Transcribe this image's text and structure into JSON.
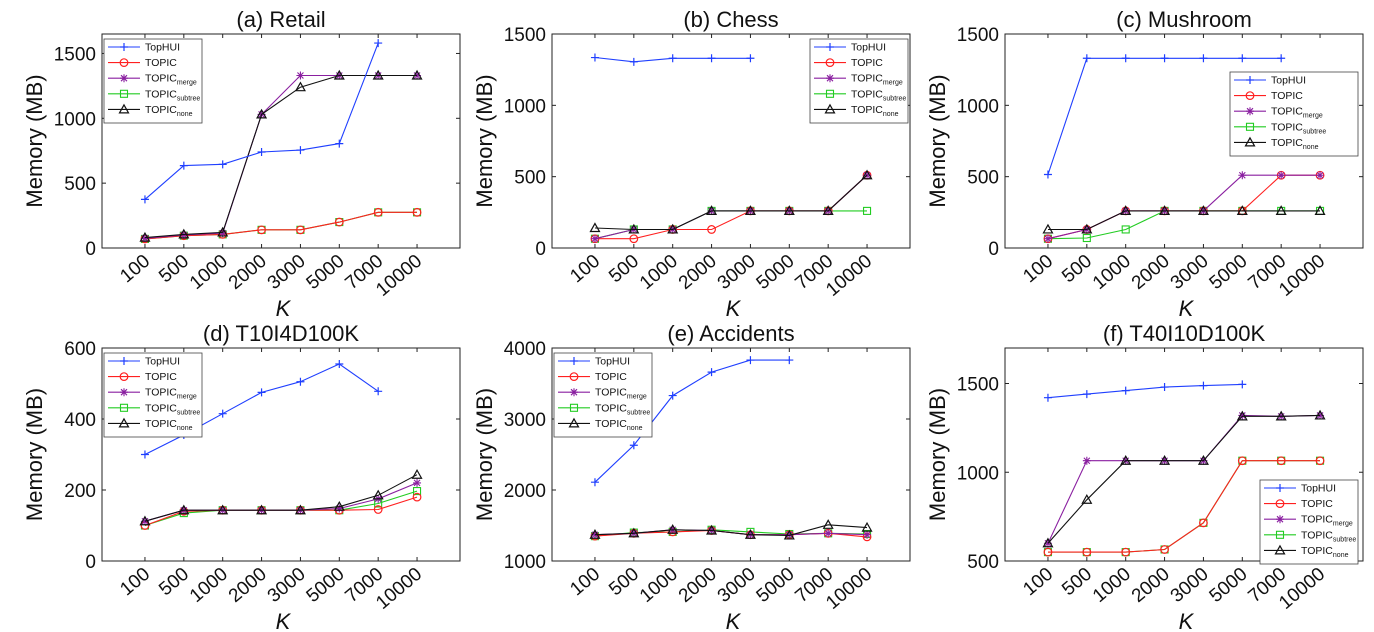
{
  "colors": {
    "TopHUI": "#1f3fff",
    "TOPIC": "#ff2020",
    "TOPIC_merge": "#8a1fa0",
    "TOPIC_subtree": "#22cc22",
    "TOPIC_none": "#111111"
  },
  "legend_entries": [
    {
      "key": "TopHUI",
      "main": "TopHUI",
      "sub": "",
      "marker": "plus"
    },
    {
      "key": "TOPIC",
      "main": "TOPIC",
      "sub": "",
      "marker": "circle"
    },
    {
      "key": "TOPIC_merge",
      "main": "TOPIC",
      "sub": "merge",
      "marker": "star"
    },
    {
      "key": "TOPIC_subtree",
      "main": "TOPIC",
      "sub": "subtree",
      "marker": "square"
    },
    {
      "key": "TOPIC_none",
      "main": "TOPIC",
      "sub": "none",
      "marker": "triangle"
    }
  ],
  "chart_data": [
    {
      "type": "line",
      "title": "(a) Retail",
      "xlabel": "K",
      "ylabel": "Memory (MB)",
      "categories": [
        "100",
        "500",
        "1000",
        "2000",
        "3000",
        "5000",
        "7000",
        "10000"
      ],
      "ylim": [
        0,
        1650
      ],
      "yticks": [
        0,
        500,
        1000,
        1500
      ],
      "legend_position": "top-left",
      "series": [
        {
          "name": "TopHUI",
          "values": [
            375,
            635,
            645,
            740,
            755,
            805,
            1580,
            null
          ]
        },
        {
          "name": "TOPIC",
          "values": [
            70,
            95,
            105,
            140,
            140,
            200,
            275,
            275
          ]
        },
        {
          "name": "TOPIC_merge",
          "values": [
            75,
            100,
            115,
            1030,
            1330,
            1330,
            1330,
            1330
          ]
        },
        {
          "name": "TOPIC_subtree",
          "values": [
            70,
            95,
            105,
            140,
            140,
            200,
            275,
            275
          ]
        },
        {
          "name": "TOPIC_none",
          "values": [
            80,
            105,
            120,
            1030,
            1240,
            1330,
            1330,
            1330
          ]
        }
      ]
    },
    {
      "type": "line",
      "title": "(b) Chess",
      "xlabel": "K",
      "ylabel": "Memory (MB)",
      "categories": [
        "100",
        "500",
        "1000",
        "2000",
        "3000",
        "5000",
        "7000",
        "10000"
      ],
      "ylim": [
        0,
        1500
      ],
      "yticks": [
        0,
        500,
        1000,
        1500
      ],
      "legend_position": "top-right",
      "series": [
        {
          "name": "TopHUI",
          "values": [
            1335,
            1305,
            1330,
            1330,
            1330,
            null,
            null,
            null
          ]
        },
        {
          "name": "TOPIC",
          "values": [
            65,
            65,
            130,
            130,
            260,
            260,
            260,
            510
          ]
        },
        {
          "name": "TOPIC_merge",
          "values": [
            65,
            130,
            130,
            260,
            260,
            260,
            260,
            510
          ]
        },
        {
          "name": "TOPIC_subtree",
          "values": [
            65,
            130,
            130,
            260,
            260,
            260,
            260,
            260
          ]
        },
        {
          "name": "TOPIC_none",
          "values": [
            140,
            130,
            130,
            260,
            260,
            260,
            260,
            510
          ]
        }
      ]
    },
    {
      "type": "line",
      "title": "(c) Mushroom",
      "xlabel": "K",
      "ylabel": "Memory (MB)",
      "categories": [
        "100",
        "500",
        "1000",
        "2000",
        "3000",
        "5000",
        "7000",
        "10000"
      ],
      "ylim": [
        0,
        1500
      ],
      "yticks": [
        0,
        500,
        1000,
        1500
      ],
      "legend_position": "right",
      "series": [
        {
          "name": "TopHUI",
          "values": [
            515,
            1330,
            1330,
            1330,
            1330,
            1330,
            1330,
            null
          ]
        },
        {
          "name": "TOPIC",
          "values": [
            65,
            130,
            260,
            260,
            260,
            260,
            510,
            510
          ]
        },
        {
          "name": "TOPIC_merge",
          "values": [
            65,
            130,
            260,
            260,
            260,
            510,
            510,
            510
          ]
        },
        {
          "name": "TOPIC_subtree",
          "values": [
            65,
            70,
            130,
            260,
            260,
            260,
            260,
            260
          ]
        },
        {
          "name": "TOPIC_none",
          "values": [
            130,
            130,
            260,
            260,
            260,
            260,
            260,
            260
          ]
        }
      ]
    },
    {
      "type": "line",
      "title": "(d) T10I4D100K",
      "xlabel": "K",
      "ylabel": "Memory (MB)",
      "categories": [
        "100",
        "500",
        "1000",
        "2000",
        "3000",
        "5000",
        "7000",
        "10000"
      ],
      "ylim": [
        0,
        600
      ],
      "yticks": [
        0,
        200,
        400,
        600
      ],
      "legend_position": "top-left",
      "series": [
        {
          "name": "TopHUI",
          "values": [
            300,
            355,
            415,
            475,
            505,
            555,
            478,
            null
          ]
        },
        {
          "name": "TOPIC",
          "values": [
            100,
            140,
            143,
            143,
            143,
            143,
            145,
            180
          ]
        },
        {
          "name": "TOPIC_merge",
          "values": [
            112,
            143,
            143,
            143,
            143,
            148,
            175,
            220
          ]
        },
        {
          "name": "TOPIC_subtree",
          "values": [
            100,
            135,
            143,
            143,
            143,
            143,
            162,
            197
          ]
        },
        {
          "name": "TOPIC_none",
          "values": [
            112,
            143,
            143,
            143,
            143,
            153,
            185,
            243
          ]
        }
      ]
    },
    {
      "type": "line",
      "title": "(e) Accidents",
      "xlabel": "K",
      "ylabel": "Memory (MB)",
      "categories": [
        "100",
        "500",
        "1000",
        "2000",
        "3000",
        "5000",
        "7000",
        "10000"
      ],
      "ylim": [
        1000,
        4000
      ],
      "yticks": [
        1000,
        2000,
        3000,
        4000
      ],
      "legend_position": "top-left",
      "series": [
        {
          "name": "TopHUI",
          "values": [
            2110,
            2630,
            3330,
            3660,
            3830,
            3830,
            null,
            null
          ]
        },
        {
          "name": "TOPIC",
          "values": [
            1350,
            1390,
            1410,
            1430,
            1370,
            1370,
            1390,
            1340
          ]
        },
        {
          "name": "TOPIC_merge",
          "values": [
            1370,
            1390,
            1440,
            1430,
            1370,
            1370,
            1390,
            1370
          ]
        },
        {
          "name": "TOPIC_subtree",
          "values": [
            1350,
            1400,
            1410,
            1440,
            1410,
            1380,
            1390,
            1380
          ]
        },
        {
          "name": "TOPIC_none",
          "values": [
            1370,
            1390,
            1440,
            1430,
            1370,
            1360,
            1510,
            1470
          ]
        }
      ]
    },
    {
      "type": "line",
      "title": "(f) T40I10D100K",
      "xlabel": "K",
      "ylabel": "Memory (MB)",
      "categories": [
        "100",
        "500",
        "1000",
        "2000",
        "3000",
        "5000",
        "7000",
        "10000"
      ],
      "ylim": [
        500,
        1700
      ],
      "yticks": [
        500,
        1000,
        1500
      ],
      "legend_position": "bottom-right",
      "series": [
        {
          "name": "TopHUI",
          "values": [
            1420,
            1440,
            1460,
            1480,
            1488,
            1495,
            null,
            null
          ]
        },
        {
          "name": "TOPIC",
          "values": [
            550,
            550,
            550,
            565,
            715,
            1065,
            1065,
            1065
          ]
        },
        {
          "name": "TOPIC_merge",
          "values": [
            600,
            1065,
            1065,
            1065,
            1065,
            1320,
            1315,
            1320
          ]
        },
        {
          "name": "TOPIC_subtree",
          "values": [
            550,
            550,
            550,
            565,
            715,
            1065,
            1065,
            1065
          ]
        },
        {
          "name": "TOPIC_none",
          "values": [
            600,
            845,
            1065,
            1065,
            1065,
            1315,
            1315,
            1320
          ]
        }
      ]
    }
  ]
}
